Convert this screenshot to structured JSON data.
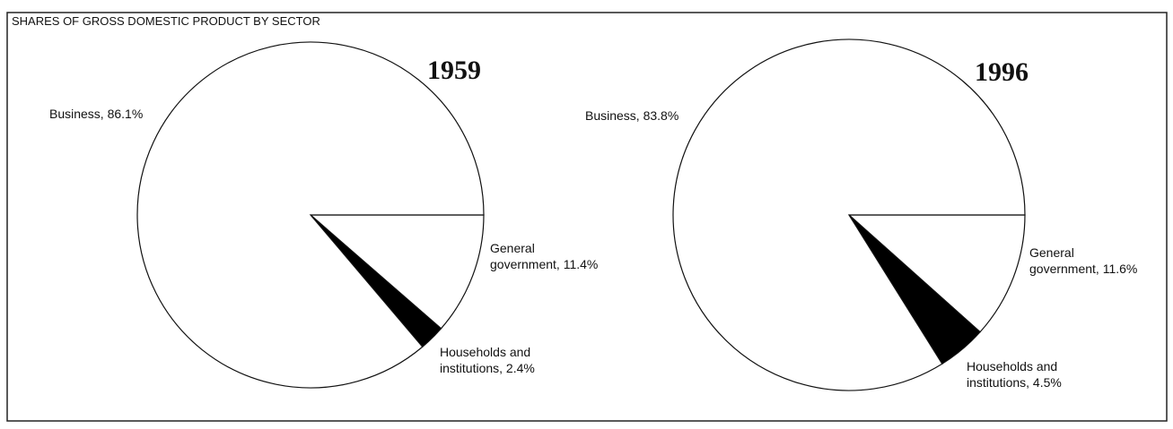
{
  "title": "SHARES OF GROSS DOMESTIC PRODUCT BY SECTOR",
  "chart_data": [
    {
      "type": "pie",
      "title": "1959",
      "values": [
        11.4,
        2.4,
        86.1
      ],
      "value_labels": [
        "General\ngovernment, 11.4%",
        "Households and\ninstitutions, 2.4%",
        "Business, 86.1%"
      ],
      "colors": [
        "#ffffff",
        "#000000",
        "#ffffff"
      ]
    },
    {
      "type": "pie",
      "title": "1996",
      "values": [
        11.6,
        4.5,
        83.8
      ],
      "value_labels": [
        "General\ngovernment, 11.6%",
        "Households and\ninstitutions, 4.5%",
        "Business, 83.8%"
      ],
      "colors": [
        "#ffffff",
        "#000000",
        "#ffffff"
      ]
    }
  ]
}
